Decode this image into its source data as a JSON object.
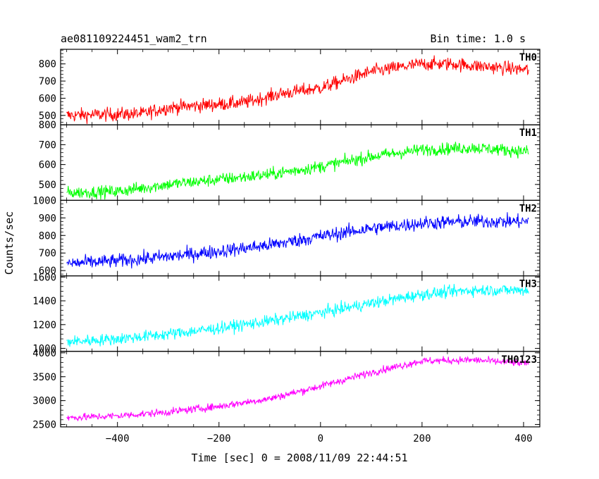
{
  "header": {
    "title": "ae081109224451_wam2_trn",
    "bin_time": "Bin time: 1.0 s"
  },
  "chart_data": {
    "type": "line",
    "xlabel": "Time [sec] 0 = 2008/11/09 22:44:51",
    "ylabel": "Counts/sec",
    "xlim": [
      -512,
      432
    ],
    "x_range": [
      -500,
      410
    ],
    "x_ticks": [
      -400,
      -200,
      0,
      200,
      400
    ],
    "x_tick_labels": [
      "−400",
      "−200",
      "0",
      "200",
      "400"
    ],
    "grid": false,
    "panels": [
      {
        "name": "TH0",
        "color": "#ff0000",
        "ylim": [
          445,
          885
        ],
        "y_ticks": [
          500,
          600,
          700,
          800
        ],
        "trend": [
          [
            -500,
            500
          ],
          [
            -350,
            510
          ],
          [
            -300,
            545
          ],
          [
            -150,
            575
          ],
          [
            -80,
            625
          ],
          [
            0,
            660
          ],
          [
            100,
            755
          ],
          [
            200,
            800
          ],
          [
            260,
            800
          ],
          [
            300,
            790
          ],
          [
            410,
            765
          ]
        ],
        "noise": 28
      },
      {
        "name": "TH1",
        "color": "#00ff00",
        "ylim": [
          420,
          800
        ],
        "y_ticks": [
          500,
          600,
          700,
          800
        ],
        "trend": [
          [
            -500,
            458
          ],
          [
            -400,
            465
          ],
          [
            -300,
            500
          ],
          [
            -200,
            525
          ],
          [
            -100,
            550
          ],
          [
            0,
            590
          ],
          [
            100,
            640
          ],
          [
            200,
            675
          ],
          [
            300,
            685
          ],
          [
            410,
            665
          ]
        ],
        "noise": 22
      },
      {
        "name": "TH2",
        "color": "#0000ff",
        "ylim": [
          570,
          1000
        ],
        "y_ticks": [
          600,
          700,
          800,
          900,
          1000
        ],
        "trend": [
          [
            -500,
            640
          ],
          [
            -400,
            655
          ],
          [
            -300,
            680
          ],
          [
            -200,
            710
          ],
          [
            -100,
            745
          ],
          [
            0,
            795
          ],
          [
            100,
            840
          ],
          [
            200,
            870
          ],
          [
            300,
            880
          ],
          [
            410,
            880
          ]
        ],
        "noise": 28
      },
      {
        "name": "TH3",
        "color": "#00ffff",
        "ylim": [
          975,
          1610
        ],
        "y_ticks": [
          1000,
          1200,
          1400,
          1600
        ],
        "trend": [
          [
            -500,
            1055
          ],
          [
            -400,
            1080
          ],
          [
            -300,
            1120
          ],
          [
            -200,
            1170
          ],
          [
            -100,
            1230
          ],
          [
            0,
            1300
          ],
          [
            100,
            1380
          ],
          [
            200,
            1455
          ],
          [
            300,
            1490
          ],
          [
            410,
            1490
          ]
        ],
        "noise": 35
      },
      {
        "name": "TH0123",
        "color": "#ff00ff",
        "ylim": [
          2450,
          4030
        ],
        "y_ticks": [
          2500,
          3000,
          3500,
          4000
        ],
        "trend": [
          [
            -500,
            2640
          ],
          [
            -400,
            2680
          ],
          [
            -300,
            2760
          ],
          [
            -200,
            2880
          ],
          [
            -100,
            3040
          ],
          [
            0,
            3300
          ],
          [
            100,
            3590
          ],
          [
            200,
            3830
          ],
          [
            300,
            3850
          ],
          [
            410,
            3770
          ]
        ],
        "noise": 55
      }
    ]
  }
}
